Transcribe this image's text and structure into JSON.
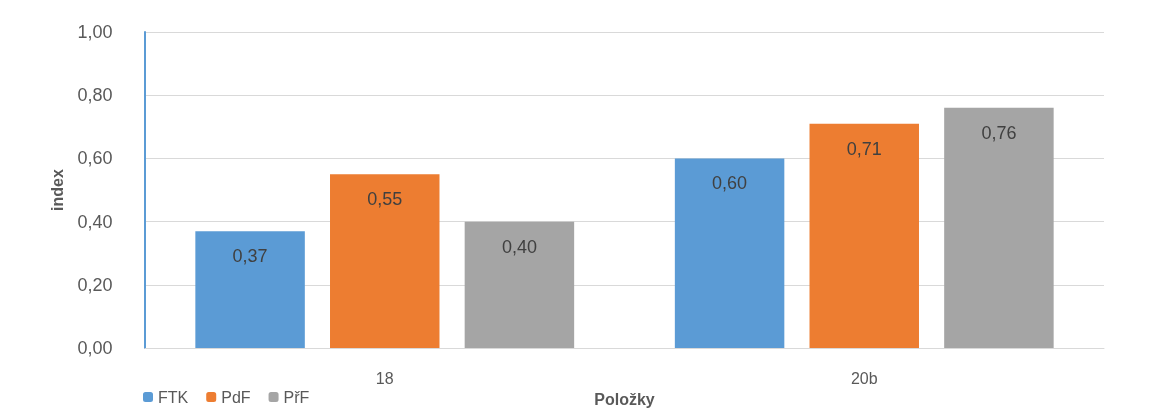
{
  "chart_data": {
    "type": "bar",
    "xlabel": "Položky",
    "ylabel": "index",
    "categories": [
      "18",
      "20b"
    ],
    "series": [
      {
        "name": "FTK",
        "color": "#5b9bd5",
        "values": [
          0.37,
          0.6
        ],
        "value_labels": [
          "0,37",
          "0,60"
        ]
      },
      {
        "name": "PdF",
        "color": "#ed7d31",
        "values": [
          0.55,
          0.71
        ],
        "value_labels": [
          "0,55",
          "0,71"
        ]
      },
      {
        "name": "PřF",
        "color": "#a5a5a5",
        "values": [
          0.4,
          0.76
        ],
        "value_labels": [
          "0,40",
          "0,76"
        ]
      }
    ],
    "ylim": [
      0,
      1
    ],
    "yticks": [
      {
        "value": 0,
        "label": "0,00"
      },
      {
        "value": 0.2,
        "label": "0,20"
      },
      {
        "value": 0.4,
        "label": "0,40"
      },
      {
        "value": 0.6,
        "label": "0,60"
      },
      {
        "value": 0.8,
        "label": "0,80"
      },
      {
        "value": 1,
        "label": "1,00"
      }
    ],
    "grid": "y",
    "legend": "bottom left"
  }
}
